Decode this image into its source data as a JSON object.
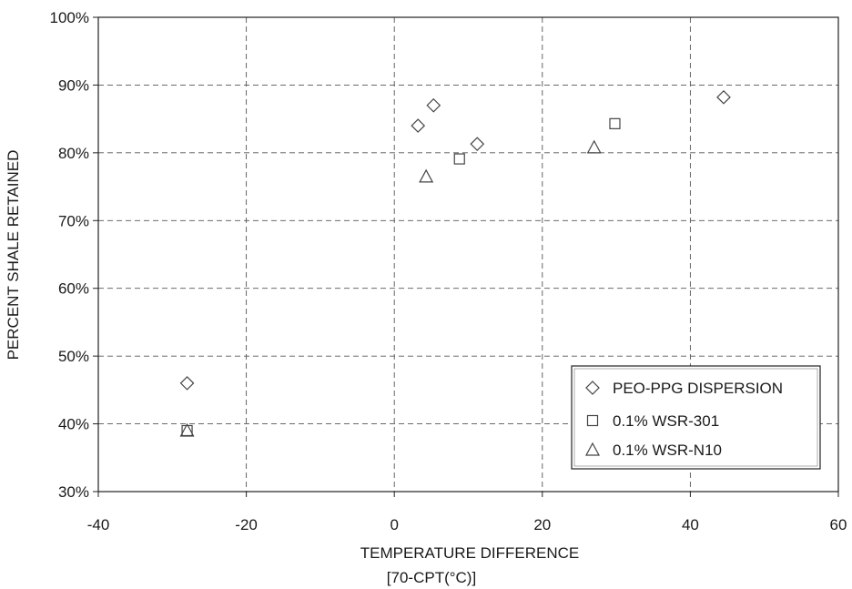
{
  "chart_data": {
    "type": "scatter",
    "title": "",
    "xlabel": "TEMPERATURE DIFFERENCE",
    "xlabel_line2": "[70-CPT(°C)]",
    "ylabel": "PERCENT SHALE RETAINED",
    "xlim": [
      -40,
      60
    ],
    "ylim": [
      30,
      100
    ],
    "x_ticks": [
      -40,
      -20,
      0,
      20,
      40,
      60
    ],
    "y_ticks": [
      30,
      40,
      50,
      60,
      70,
      80,
      90,
      100
    ],
    "x_tick_labels": [
      "-40",
      "-20",
      "0",
      "20",
      "40",
      "60"
    ],
    "y_tick_labels": [
      "30%",
      "40%",
      "50%",
      "60%",
      "70%",
      "80%",
      "90%",
      "100%"
    ],
    "grid": true,
    "legend_position": "bottom-right",
    "series": [
      {
        "name": "PEO-PPG DISPERSION",
        "marker": "diamond",
        "x": [
          -28,
          3.2,
          5.3,
          11.2,
          44.5
        ],
        "y": [
          46,
          84,
          87,
          81.3,
          88.2
        ]
      },
      {
        "name": "0.1% WSR-301",
        "marker": "square",
        "x": [
          -28,
          8.8,
          29.8
        ],
        "y": [
          39,
          79.1,
          84.3
        ]
      },
      {
        "name": "0.1% WSR-N10",
        "marker": "triangle",
        "x": [
          -28,
          4.3,
          27
        ],
        "y": [
          39,
          76.5,
          80.8
        ]
      }
    ]
  },
  "colors": {
    "marker_stroke": "#444444",
    "grid": "#555555",
    "axis": "#222222",
    "text": "#1a1a1a"
  }
}
